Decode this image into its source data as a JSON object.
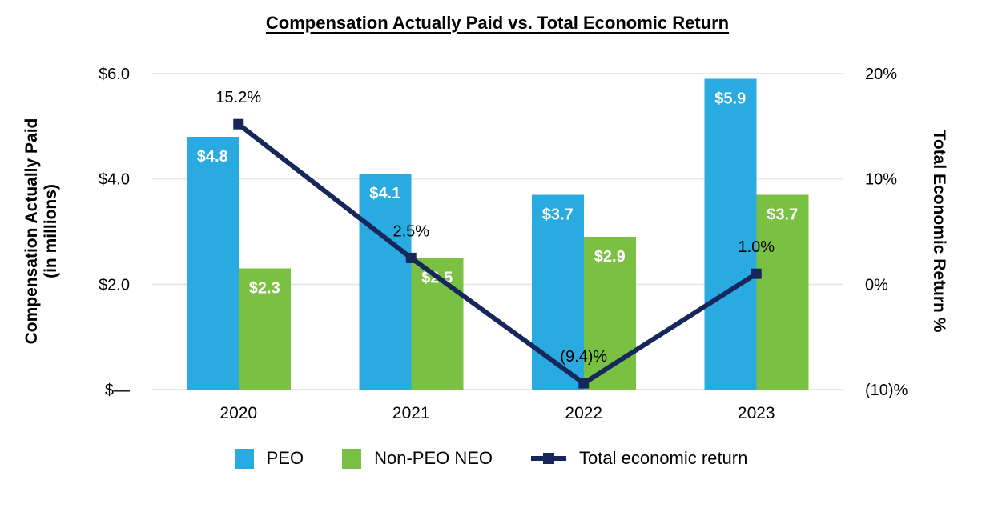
{
  "title": "Compensation Actually Paid vs. Total Economic Return",
  "colors": {
    "peo_bar": "#29ABE2",
    "non_peo_bar": "#7AC143",
    "return_line": "#17275B",
    "gridline": "#E8E8E8",
    "text": "#000000",
    "bar_label_text": "#FFFFFF"
  },
  "legend": {
    "items": [
      {
        "label": "PEO",
        "swatch": "square",
        "color": "#29ABE2"
      },
      {
        "label": "Non-PEO NEO",
        "swatch": "square",
        "color": "#7AC143"
      },
      {
        "label": "Total economic return",
        "swatch": "line-marker",
        "color": "#17275B"
      }
    ]
  },
  "chart_data": {
    "type": "combo-bar-line",
    "categories": [
      "2020",
      "2021",
      "2022",
      "2023"
    ],
    "series": [
      {
        "name": "PEO",
        "type": "bar",
        "axis": "left",
        "color": "#29ABE2",
        "values": [
          4.8,
          4.1,
          3.7,
          5.9
        ],
        "data_labels": [
          "$4.8",
          "$4.1",
          "$3.7",
          "$5.9"
        ]
      },
      {
        "name": "Non-PEO NEO",
        "type": "bar",
        "axis": "left",
        "color": "#7AC143",
        "values": [
          2.3,
          2.5,
          2.9,
          3.7
        ],
        "data_labels": [
          "$2.3",
          "$2.5",
          "$2.9",
          "$3.7"
        ]
      },
      {
        "name": "Total economic return",
        "type": "line",
        "axis": "right",
        "color": "#17275B",
        "values": [
          15.2,
          2.5,
          -9.4,
          1.0
        ],
        "data_labels": [
          "15.2%",
          "2.5%",
          "(9.4)%",
          "1.0%"
        ]
      }
    ],
    "left_axis": {
      "title_line1": "Compensation Actually Paid",
      "title_line2": "(in millions)",
      "range": [
        0,
        6
      ],
      "ticks": [
        {
          "value": 6,
          "label": "$6.0"
        },
        {
          "value": 4,
          "label": "$4.0"
        },
        {
          "value": 2,
          "label": "$2.0"
        },
        {
          "value": 0,
          "label": "$—"
        }
      ]
    },
    "right_axis": {
      "title": "Total Economic Return %",
      "range": [
        -10,
        20
      ],
      "ticks": [
        {
          "value": 20,
          "label": "20%"
        },
        {
          "value": 10,
          "label": "10%"
        },
        {
          "value": 0,
          "label": "0%"
        },
        {
          "value": -10,
          "label": "(10)%"
        }
      ]
    },
    "grid": true,
    "legend_position": "bottom"
  }
}
